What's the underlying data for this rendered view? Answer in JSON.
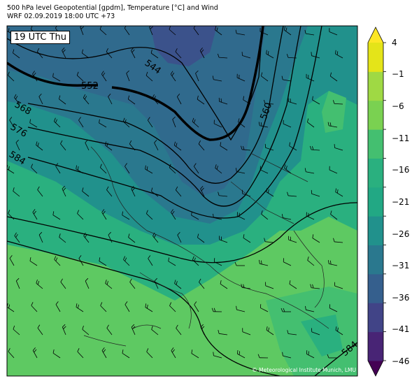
{
  "header": {
    "title_line1": "500 hPa level Geopotential [gpdm], Temperature [°C] and Wind",
    "title_line2": "WRF 02.09.2019 18:00 UTC +73"
  },
  "stamp": "19 UTC Thu",
  "credit": "© Meteorological Institute Munich, LMU",
  "contour_labels": [
    "544",
    "552",
    "560",
    "568",
    "576",
    "584",
    "584"
  ],
  "colorbar": {
    "ticks": [
      "4",
      "−1",
      "−6",
      "−11",
      "−16",
      "−21",
      "−26",
      "−31",
      "−36",
      "−41",
      "−46"
    ],
    "colors": [
      "#440154",
      "#482475",
      "#414487",
      "#355f8d",
      "#2a788e",
      "#21918c",
      "#22a884",
      "#2ab07f",
      "#44bf70",
      "#7ad151",
      "#9fd944",
      "#e4e419",
      "#fde725"
    ]
  }
}
